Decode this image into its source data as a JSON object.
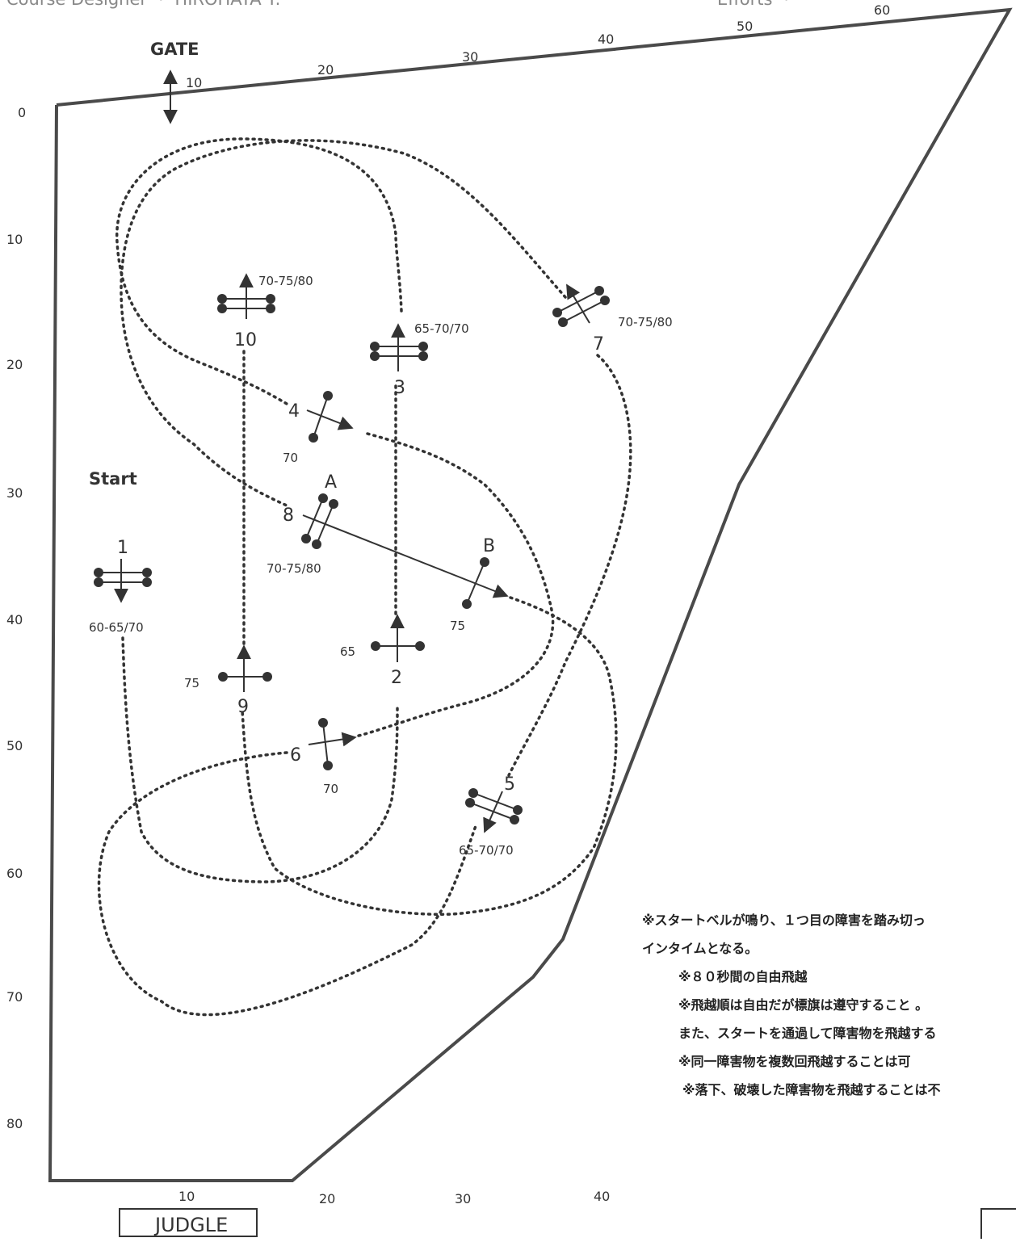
{
  "header": {
    "designer": "Course Designer ・ HIROHATA T.",
    "efforts": "Efforts ・"
  },
  "labels": {
    "gate": "GATE",
    "start": "Start",
    "judge": "JUDGLE",
    "combo_a": "A",
    "combo_b": "B"
  },
  "axes": {
    "top": [
      "10",
      "20",
      "30",
      "40",
      "50",
      "60"
    ],
    "left": [
      "0",
      "10",
      "20",
      "30",
      "40",
      "50",
      "60",
      "70",
      "80"
    ],
    "bottom": [
      "10",
      "20",
      "30",
      "40"
    ]
  },
  "obstacles": [
    {
      "number": "1",
      "height": "60-65/70"
    },
    {
      "number": "2",
      "height": "65"
    },
    {
      "number": "3",
      "height": "65-70/70"
    },
    {
      "number": "4",
      "height": "70"
    },
    {
      "number": "5",
      "height": "65-70/70"
    },
    {
      "number": "6",
      "height": "70"
    },
    {
      "number": "7",
      "height": "70-75/80"
    },
    {
      "number": "8",
      "height": "70-75/80"
    },
    {
      "number": "8B",
      "height": "75"
    },
    {
      "number": "9",
      "height": "75"
    },
    {
      "number": "10",
      "height": "70-75/80"
    }
  ],
  "notes": [
    "※スタートベルが鳴り、１つ目の障害を踏み切っ",
    "インタイムとなる。",
    "※８０秒間の自由飛越",
    "※飛越順は自由だが標旗は遵守すること 。",
    "また、スタートを通過して障害物を飛越する",
    "※同一障害物を複数回飛越することは可",
    "※落下、破壊した障害物を飛越することは不"
  ]
}
